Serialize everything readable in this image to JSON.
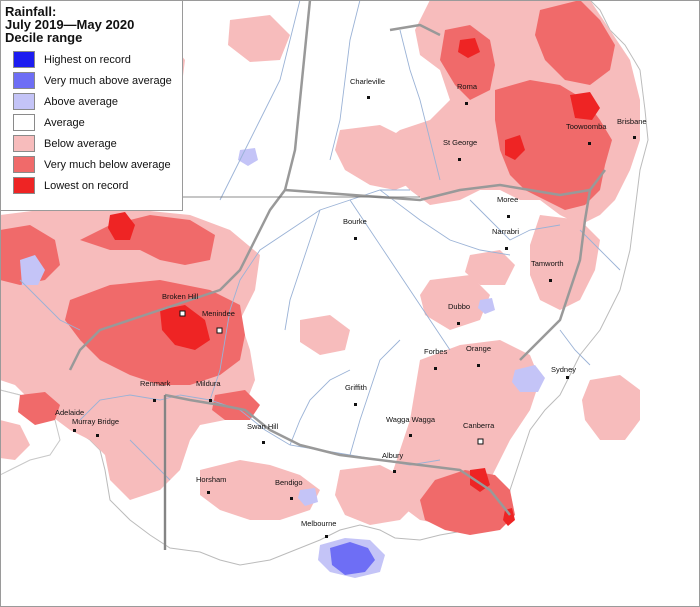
{
  "legend": {
    "title_line1": "Rainfall:",
    "title_line2": "July 2019—May 2020",
    "title_line3": "Decile range",
    "items": [
      {
        "label": "Highest on record",
        "color": "#1c1cf0"
      },
      {
        "label": "Very much above average",
        "color": "#6e6ef5"
      },
      {
        "label": "Above average",
        "color": "#c4c4f7"
      },
      {
        "label": "Average",
        "color": "#ffffff"
      },
      {
        "label": "Below average",
        "color": "#f7bcbc"
      },
      {
        "label": "Very much below average",
        "color": "#f06a6a"
      },
      {
        "label": "Lowest on record",
        "color": "#ee2424"
      }
    ]
  },
  "towns": {
    "charleville": "Charleville",
    "roma": "Roma",
    "toowoomba": "Toowoomba",
    "brisbane": "Brisbane",
    "st_george": "St George",
    "moree": "Moree",
    "narrabri": "Narrabri",
    "bourke": "Bourke",
    "tamworth": "Tamworth",
    "broken_hill": "Broken Hill",
    "menindee": "Menindee",
    "dubbo": "Dubbo",
    "forbes": "Forbes",
    "orange": "Orange",
    "renmark": "Renmark",
    "mildura": "Mildura",
    "sydney": "Sydney",
    "griffith": "Griffith",
    "adelaide": "Adelaide",
    "murray_bridge": "Murray Bridge",
    "wagga_wagga": "Wagga Wagga",
    "swan_hill": "Swan Hill",
    "canberra": "Canberra",
    "albury": "Albury",
    "horsham": "Horsham",
    "bendigo": "Bendigo",
    "melbourne": "Melbourne"
  }
}
